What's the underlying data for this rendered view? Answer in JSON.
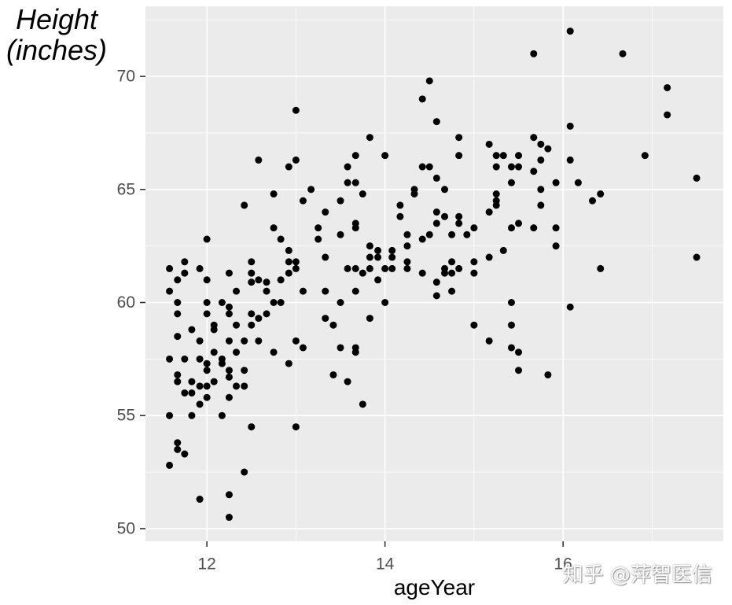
{
  "chart_data": {
    "type": "scatter",
    "xlabel": "ageYear",
    "ylabel": "Height\n(inches)",
    "xlim": [
      11.31,
      17.8
    ],
    "ylim": [
      49.44,
      73.1
    ],
    "xticks": [
      12,
      14,
      16
    ],
    "yticks": [
      50,
      55,
      60,
      65,
      70
    ],
    "grid": true,
    "point_color": "#000000",
    "panel_color": "#ebebeb",
    "grid_color": "#ffffff",
    "points": [
      [
        11.58,
        61.5
      ],
      [
        11.58,
        60.5
      ],
      [
        11.58,
        57.5
      ],
      [
        11.58,
        55.0
      ],
      [
        11.58,
        52.8
      ],
      [
        11.67,
        61.0
      ],
      [
        11.67,
        60.0
      ],
      [
        11.67,
        59.5
      ],
      [
        11.67,
        58.5
      ],
      [
        11.67,
        56.8
      ],
      [
        11.67,
        56.5
      ],
      [
        11.67,
        53.8
      ],
      [
        11.67,
        53.5
      ],
      [
        11.75,
        61.8
      ],
      [
        11.75,
        61.3
      ],
      [
        11.75,
        57.5
      ],
      [
        11.75,
        56.0
      ],
      [
        11.75,
        53.3
      ],
      [
        11.83,
        58.8
      ],
      [
        11.83,
        56.5
      ],
      [
        11.83,
        56.0
      ],
      [
        11.83,
        55.0
      ],
      [
        11.92,
        61.5
      ],
      [
        11.92,
        58.3
      ],
      [
        11.92,
        57.5
      ],
      [
        11.92,
        56.3
      ],
      [
        11.92,
        55.5
      ],
      [
        11.92,
        51.3
      ],
      [
        12.0,
        62.8
      ],
      [
        12.0,
        61.0
      ],
      [
        12.0,
        60.0
      ],
      [
        12.0,
        59.5
      ],
      [
        12.0,
        57.3
      ],
      [
        12.0,
        57.0
      ],
      [
        12.0,
        56.3
      ],
      [
        12.0,
        55.8
      ],
      [
        12.08,
        59.0
      ],
      [
        12.08,
        58.8
      ],
      [
        12.08,
        57.8
      ],
      [
        12.08,
        56.5
      ],
      [
        12.17,
        60.0
      ],
      [
        12.17,
        57.5
      ],
      [
        12.17,
        57.3
      ],
      [
        12.17,
        55.0
      ],
      [
        12.25,
        61.3
      ],
      [
        12.25,
        59.8
      ],
      [
        12.25,
        59.5
      ],
      [
        12.25,
        58.3
      ],
      [
        12.25,
        57.0
      ],
      [
        12.25,
        56.7
      ],
      [
        12.25,
        55.8
      ],
      [
        12.25,
        51.5
      ],
      [
        12.25,
        50.5
      ],
      [
        12.33,
        60.5
      ],
      [
        12.33,
        59.0
      ],
      [
        12.33,
        57.8
      ],
      [
        12.33,
        56.3
      ],
      [
        12.42,
        64.3
      ],
      [
        12.42,
        58.3
      ],
      [
        12.42,
        57.0
      ],
      [
        12.42,
        56.3
      ],
      [
        12.42,
        52.5
      ],
      [
        12.5,
        61.8
      ],
      [
        12.5,
        61.3
      ],
      [
        12.5,
        60.9
      ],
      [
        12.5,
        59.5
      ],
      [
        12.5,
        59.0
      ],
      [
        12.5,
        54.5
      ],
      [
        12.58,
        66.3
      ],
      [
        12.58,
        61.0
      ],
      [
        12.58,
        59.3
      ],
      [
        12.58,
        58.3
      ],
      [
        12.67,
        60.9
      ],
      [
        12.67,
        60.5
      ],
      [
        12.67,
        59.5
      ],
      [
        12.75,
        64.8
      ],
      [
        12.75,
        63.3
      ],
      [
        12.75,
        60.0
      ],
      [
        12.75,
        57.8
      ],
      [
        12.83,
        62.8
      ],
      [
        12.83,
        61.0
      ],
      [
        12.83,
        60.0
      ],
      [
        12.92,
        66.0
      ],
      [
        12.92,
        62.3
      ],
      [
        12.92,
        61.8
      ],
      [
        12.92,
        61.3
      ],
      [
        12.92,
        57.3
      ],
      [
        13.0,
        68.5
      ],
      [
        13.0,
        66.3
      ],
      [
        13.0,
        61.8
      ],
      [
        13.0,
        61.5
      ],
      [
        13.0,
        58.3
      ],
      [
        13.0,
        54.5
      ],
      [
        13.08,
        64.5
      ],
      [
        13.08,
        60.5
      ],
      [
        13.08,
        58.0
      ],
      [
        13.17,
        65.0
      ],
      [
        13.25,
        63.3
      ],
      [
        13.25,
        62.8
      ],
      [
        13.33,
        64.0
      ],
      [
        13.33,
        62.0
      ],
      [
        13.33,
        60.5
      ],
      [
        13.33,
        59.3
      ],
      [
        13.42,
        59.0
      ],
      [
        13.42,
        56.8
      ],
      [
        13.5,
        64.5
      ],
      [
        13.5,
        63.0
      ],
      [
        13.5,
        60.0
      ],
      [
        13.5,
        58.0
      ],
      [
        13.58,
        66.0
      ],
      [
        13.58,
        65.3
      ],
      [
        13.58,
        61.5
      ],
      [
        13.58,
        56.5
      ],
      [
        13.67,
        66.5
      ],
      [
        13.67,
        65.3
      ],
      [
        13.67,
        63.5
      ],
      [
        13.67,
        63.3
      ],
      [
        13.67,
        61.5
      ],
      [
        13.67,
        60.5
      ],
      [
        13.67,
        58.0
      ],
      [
        13.67,
        57.8
      ],
      [
        13.75,
        64.8
      ],
      [
        13.75,
        61.3
      ],
      [
        13.75,
        55.5
      ],
      [
        13.83,
        67.3
      ],
      [
        13.83,
        62.5
      ],
      [
        13.83,
        62.0
      ],
      [
        13.83,
        61.5
      ],
      [
        13.83,
        59.3
      ],
      [
        13.92,
        62.3
      ],
      [
        13.92,
        62.0
      ],
      [
        13.92,
        61.0
      ],
      [
        14.0,
        66.5
      ],
      [
        14.0,
        61.5
      ],
      [
        14.0,
        60.0
      ],
      [
        14.08,
        62.3
      ],
      [
        14.08,
        62.0
      ],
      [
        14.08,
        61.5
      ],
      [
        14.17,
        64.3
      ],
      [
        14.17,
        63.8
      ],
      [
        14.25,
        63.0
      ],
      [
        14.25,
        62.5
      ],
      [
        14.25,
        61.8
      ],
      [
        14.25,
        61.5
      ],
      [
        14.33,
        65.0
      ],
      [
        14.33,
        64.8
      ],
      [
        14.42,
        69.0
      ],
      [
        14.42,
        66.0
      ],
      [
        14.42,
        62.8
      ],
      [
        14.42,
        61.3
      ],
      [
        14.5,
        69.8
      ],
      [
        14.5,
        66.0
      ],
      [
        14.5,
        63.0
      ],
      [
        14.58,
        68.0
      ],
      [
        14.58,
        65.5
      ],
      [
        14.58,
        64.0
      ],
      [
        14.58,
        63.5
      ],
      [
        14.58,
        60.9
      ],
      [
        14.58,
        60.3
      ],
      [
        14.67,
        65.0
      ],
      [
        14.67,
        63.8
      ],
      [
        14.67,
        61.5
      ],
      [
        14.67,
        61.3
      ],
      [
        14.75,
        63.0
      ],
      [
        14.75,
        61.8
      ],
      [
        14.75,
        61.3
      ],
      [
        14.75,
        60.5
      ],
      [
        14.83,
        67.3
      ],
      [
        14.83,
        66.5
      ],
      [
        14.83,
        63.8
      ],
      [
        14.83,
        63.5
      ],
      [
        14.83,
        61.5
      ],
      [
        14.92,
        63.0
      ],
      [
        15.0,
        63.3
      ],
      [
        15.0,
        61.8
      ],
      [
        15.0,
        61.3
      ],
      [
        15.0,
        59.0
      ],
      [
        15.17,
        67.0
      ],
      [
        15.17,
        64.0
      ],
      [
        15.17,
        62.0
      ],
      [
        15.17,
        58.3
      ],
      [
        15.25,
        66.5
      ],
      [
        15.25,
        66.0
      ],
      [
        15.25,
        64.8
      ],
      [
        15.25,
        64.5
      ],
      [
        15.25,
        64.3
      ],
      [
        15.33,
        66.5
      ],
      [
        15.33,
        62.3
      ],
      [
        15.42,
        66.0
      ],
      [
        15.42,
        65.3
      ],
      [
        15.42,
        63.3
      ],
      [
        15.42,
        60.0
      ],
      [
        15.42,
        59.0
      ],
      [
        15.42,
        58.0
      ],
      [
        15.5,
        66.5
      ],
      [
        15.5,
        66.0
      ],
      [
        15.5,
        63.5
      ],
      [
        15.5,
        57.8
      ],
      [
        15.5,
        57.0
      ],
      [
        15.67,
        71.0
      ],
      [
        15.67,
        67.3
      ],
      [
        15.67,
        65.8
      ],
      [
        15.67,
        63.3
      ],
      [
        15.75,
        67.0
      ],
      [
        15.75,
        66.3
      ],
      [
        15.75,
        65.0
      ],
      [
        15.75,
        64.3
      ],
      [
        15.83,
        66.8
      ],
      [
        15.83,
        56.8
      ],
      [
        15.92,
        65.3
      ],
      [
        15.92,
        63.3
      ],
      [
        15.92,
        62.5
      ],
      [
        16.08,
        72.0
      ],
      [
        16.08,
        67.8
      ],
      [
        16.08,
        66.3
      ],
      [
        16.08,
        59.8
      ],
      [
        16.17,
        65.3
      ],
      [
        16.33,
        64.5
      ],
      [
        16.42,
        64.8
      ],
      [
        16.42,
        61.5
      ],
      [
        16.67,
        71.0
      ],
      [
        16.92,
        66.5
      ],
      [
        17.17,
        69.5
      ],
      [
        17.17,
        68.3
      ],
      [
        17.5,
        65.5
      ],
      [
        17.5,
        62.0
      ]
    ]
  },
  "watermark": "知乎 @萍智医信"
}
